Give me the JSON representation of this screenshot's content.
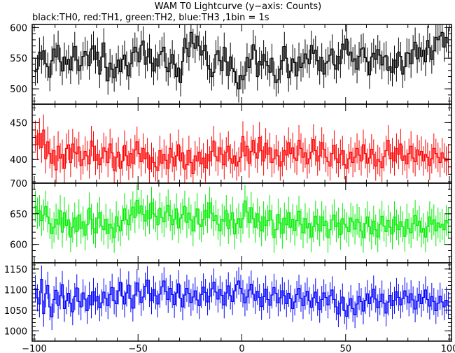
{
  "title": "WAM T0 Lightcurve (y−axis: Counts)",
  "subtitle": "black:TH0, red:TH1, green:TH2, blue:TH3 ,1bin = 1s",
  "chart_data": {
    "type": "line",
    "title": "WAM T0 Lightcurve (y−axis: Counts)",
    "subtitle": "black:TH0, red:TH1, green:TH2, blue:TH3 ,1bin = 1s",
    "xlabel": "",
    "ylabel": "",
    "xlim": [
      -101,
      101
    ],
    "x": {
      "start": -100,
      "end": 99,
      "step": 1
    },
    "x_ticks": [
      -100,
      -50,
      0,
      50,
      100
    ],
    "grid": false,
    "legend": "none",
    "panels": [
      {
        "name": "TH0",
        "color": "#000000",
        "ylim": [
          475,
          605
        ],
        "y_ticks": [
          500,
          550,
          600
        ],
        "values": [
          528,
          532,
          560,
          548,
          562,
          541,
          536,
          519,
          546,
          565,
          552,
          571,
          544,
          529,
          552,
          540,
          548,
          531,
          552,
          569,
          547,
          530,
          538,
          553,
          561,
          555,
          538,
          565,
          570,
          548,
          560,
          524,
          552,
          575,
          535,
          513,
          542,
          532,
          518,
          535,
          547,
          528,
          548,
          555,
          538,
          521,
          541,
          559,
          568,
          560,
          544,
          571,
          578,
          540,
          552,
          565,
          542,
          529,
          549,
          537,
          556,
          561,
          568,
          535,
          528,
          542,
          556,
          540,
          520,
          534,
          510,
          545,
          582,
          566,
          553,
          592,
          574,
          566,
          586,
          570,
          555,
          562,
          571,
          538,
          532,
          520,
          527,
          556,
          562,
          546,
          530,
          568,
          544,
          522,
          552,
          533,
          528,
          510,
          500,
          522,
          515,
          522,
          551,
          535,
          548,
          572,
          563,
          520,
          545,
          539,
          556,
          545,
          538,
          527,
          550,
          522,
          510,
          515,
          532,
          546,
          569,
          550,
          518,
          529,
          549,
          543,
          521,
          552,
          535,
          542,
          557,
          549,
          541,
          571,
          558,
          563,
          546,
          530,
          551,
          524,
          542,
          545,
          555,
          565,
          539,
          532,
          553,
          541,
          573,
          564,
          581,
          555,
          560,
          545,
          549,
          532,
          553,
          565,
          567,
          551,
          544,
          523,
          552,
          558,
          548,
          564,
          555,
          539,
          552,
          554,
          530,
          536,
          527,
          547,
          535,
          560,
          553,
          524,
          536,
          559,
          558,
          541,
          564,
          576,
          549,
          567,
          553,
          563,
          544,
          579,
          567,
          548,
          562,
          584,
          580,
          586,
          592,
          568,
          584,
          575
        ]
      },
      {
        "name": "TH1",
        "color": "#ff0000",
        "ylim": [
          368,
          475
        ],
        "y_ticks": [
          400,
          450
        ],
        "values": [
          432,
          420,
          435,
          416,
          440,
          401,
          424,
          408,
          395,
          412,
          386,
          418,
          402,
          407,
          388,
          415,
          420,
          396,
          421,
          410,
          408,
          417,
          392,
          400,
          411,
          405,
          394,
          425,
          418,
          399,
          407,
          393,
          402,
          416,
          411,
          396,
          421,
          409,
          385,
          403,
          410,
          388,
          398,
          419,
          405,
          392,
          408,
          395,
          413,
          424,
          408,
          397,
          415,
          401,
          409,
          387,
          403,
          396,
          390,
          385,
          412,
          395,
          407,
          399,
          388,
          415,
          403,
          391,
          405,
          420,
          398,
          409,
          387,
          393,
          412,
          396,
          381,
          405,
          398,
          410,
          394,
          402,
          389,
          407,
          398,
          411,
          425,
          404,
          398,
          416,
          407,
          393,
          410,
          418,
          401,
          395,
          405,
          391,
          397,
          403,
          431,
          405,
          418,
          395,
          411,
          426,
          409,
          402,
          430,
          412,
          398,
          422,
          407,
          416,
          396,
          401,
          413,
          405,
          391,
          397,
          412,
          406,
          423,
          408,
          416,
          402,
          399,
          426,
          415,
          403,
          409,
          394,
          401,
          410,
          427,
          412,
          398,
          405,
          423,
          414,
          403,
          397,
          391,
          408,
          419,
          401,
          396,
          407,
          412,
          393,
          388,
          401,
          410,
          396,
          403,
          415,
          406,
          398,
          420,
          408,
          395,
          402,
          414,
          407,
          391,
          400,
          397,
          389,
          404,
          412,
          426,
          401,
          409,
          398,
          415,
          407,
          421,
          399,
          405,
          394,
          408,
          418,
          402,
          397,
          413,
          406,
          411,
          398,
          407,
          403,
          392,
          401,
          415,
          408,
          403,
          396,
          409,
          402,
          398,
          401
        ]
      },
      {
        "name": "TH2",
        "color": "#00ee00",
        "ylim": [
          570,
          700
        ],
        "y_ticks": [
          600,
          650,
          700
        ],
        "values": [
          662,
          651,
          655,
          639,
          648,
          662,
          645,
          634,
          618,
          628,
          641,
          633,
          655,
          620,
          652,
          631,
          640,
          612,
          628,
          643,
          621,
          648,
          626,
          637,
          615,
          632,
          659,
          641,
          626,
          619,
          643,
          652,
          630,
          624,
          641,
          618,
          633,
          627,
          611,
          645,
          630,
          622,
          639,
          658,
          640,
          632,
          648,
          661,
          644,
          672,
          651,
          663,
          649,
          638,
          655,
          642,
          668,
          650,
          646,
          632,
          659,
          644,
          637,
          653,
          664,
          647,
          632,
          641,
          658,
          627,
          643,
          649,
          662,
          636,
          651,
          640,
          622,
          645,
          658,
          633,
          629,
          641,
          656,
          644,
          668,
          651,
          639,
          647,
          633,
          622,
          641,
          638,
          655,
          626,
          640,
          652,
          617,
          634,
          642,
          628,
          642,
          671,
          653,
          636,
          660,
          642,
          628,
          650,
          637,
          622,
          645,
          631,
          639,
          655,
          640,
          611,
          624,
          649,
          635,
          618,
          643,
          632,
          652,
          628,
          641,
          623,
          639,
          654,
          633,
          619,
          642,
          627,
          634,
          612,
          629,
          646,
          633,
          622,
          645,
          631,
          638,
          611,
          624,
          640,
          648,
          629,
          635,
          616,
          642,
          633,
          628,
          621,
          643,
          637,
          625,
          641,
          636,
          622,
          611,
          634,
          645,
          629,
          617,
          638,
          624,
          612,
          633,
          646,
          630,
          621,
          639,
          628,
          617,
          645,
          632,
          624,
          637,
          629,
          613,
          641,
          626,
          619,
          634,
          647,
          631,
          638,
          620,
          626,
          612,
          629,
          645,
          633,
          640,
          622,
          635,
          628,
          633,
          624,
          639,
          635
        ]
      },
      {
        "name": "TH3",
        "color": "#0000ff",
        "ylim": [
          975,
          1165
        ],
        "y_ticks": [
          1000,
          1050,
          1100,
          1150
        ],
        "values": [
          1102,
          1080,
          1065,
          1125,
          1042,
          1090,
          1110,
          1058,
          1034,
          1076,
          1098,
          1062,
          1085,
          1112,
          1054,
          1073,
          1091,
          1067,
          1046,
          1083,
          1104,
          1071,
          1058,
          1092,
          1077,
          1049,
          1086,
          1063,
          1095,
          1072,
          1083,
          1056,
          1068,
          1094,
          1079,
          1061,
          1088,
          1105,
          1073,
          1066,
          1097,
          1118,
          1084,
          1065,
          1092,
          1111,
          1078,
          1055,
          1087,
          1116,
          1096,
          1069,
          1082,
          1108,
          1123,
          1091,
          1073,
          1100,
          1085,
          1065,
          1089,
          1107,
          1121,
          1095,
          1076,
          1103,
          1088,
          1064,
          1092,
          1114,
          1079,
          1058,
          1087,
          1103,
          1091,
          1069,
          1082,
          1097,
          1075,
          1061,
          1088,
          1106,
          1093,
          1070,
          1084,
          1102,
          1118,
          1094,
          1077,
          1100,
          1086,
          1063,
          1092,
          1109,
          1085,
          1071,
          1097,
          1112,
          1121,
          1103,
          1090,
          1068,
          1082,
          1099,
          1113,
          1089,
          1074,
          1096,
          1081,
          1059,
          1083,
          1101,
          1076,
          1062,
          1087,
          1105,
          1091,
          1068,
          1080,
          1097,
          1085,
          1066,
          1091,
          1078,
          1054,
          1070,
          1088,
          1103,
          1079,
          1061,
          1084,
          1096,
          1073,
          1057,
          1080,
          1094,
          1069,
          1052,
          1076,
          1092,
          1081,
          1063,
          1085,
          1099,
          1076,
          1058,
          1041,
          1067,
          1082,
          1049,
          1035,
          1062,
          1078,
          1054,
          1039,
          1065,
          1083,
          1071,
          1048,
          1074,
          1090,
          1066,
          1082,
          1101,
          1077,
          1056,
          1071,
          1089,
          1067,
          1043,
          1070,
          1086,
          1061,
          1074,
          1095,
          1081,
          1063,
          1078,
          1097,
          1084,
          1068,
          1090,
          1075,
          1053,
          1072,
          1088,
          1066,
          1081,
          1099,
          1076,
          1060,
          1083,
          1071,
          1049,
          1067,
          1084,
          1070,
          1058,
          1074,
          1062,
          1048,
          1060
        ]
      }
    ]
  }
}
